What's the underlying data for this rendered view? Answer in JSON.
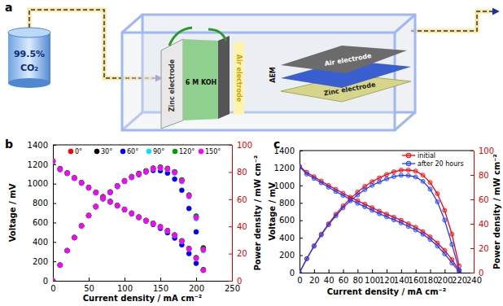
{
  "figure": {
    "panel_labels": [
      "a",
      "b",
      "c"
    ]
  },
  "diagram": {
    "gas_tank": [
      "99.5%",
      "CO₂"
    ],
    "cell": {
      "left": "Zinc electrode",
      "electrolyte": "6 M KOH",
      "right": "Air electrode"
    },
    "layers": [
      "Air electrode",
      "AEM",
      "Zinc electrode"
    ]
  },
  "chart_data": [
    {
      "type": "scatter",
      "marker": "circle",
      "legend": "top",
      "x_label": "Current density / mA cm⁻²",
      "y_label": "Voltage / mV",
      "y2_label": "Power density / mW cm⁻²",
      "xlim": [
        0,
        250
      ],
      "xticks": [
        0,
        50,
        100,
        150,
        200,
        250
      ],
      "ylim": [
        0,
        1400
      ],
      "yticks": [
        0,
        200,
        400,
        600,
        800,
        1000,
        1200,
        1400
      ],
      "y2lim": [
        0,
        100
      ],
      "y2ticks": [
        0,
        20,
        40,
        60,
        80,
        100
      ],
      "series": [
        {
          "name": "0°",
          "color": "#ff0000",
          "x": [
            0,
            10,
            20,
            30,
            40,
            50,
            60,
            70,
            80,
            90,
            100,
            110,
            120,
            130,
            140,
            150,
            160,
            170,
            180,
            190,
            200,
            210
          ],
          "values": [
            1230,
            1150,
            1110,
            1060,
            1010,
            960,
            910,
            865,
            815,
            775,
            735,
            695,
            655,
            620,
            590,
            555,
            515,
            470,
            410,
            330,
            235,
            110
          ]
        },
        {
          "name": "30°",
          "color": "#000000",
          "x": [
            0,
            10,
            20,
            30,
            40,
            50,
            60,
            70,
            80,
            90,
            100,
            110,
            120,
            130,
            140,
            150,
            160,
            170,
            180,
            190,
            200,
            210
          ],
          "values": [
            1235,
            1155,
            1112,
            1062,
            1012,
            962,
            912,
            866,
            818,
            777,
            737,
            697,
            658,
            622,
            592,
            557,
            517,
            472,
            412,
            332,
            238,
            115
          ]
        },
        {
          "name": "60°",
          "color": "#0000ff",
          "x": [
            0,
            10,
            20,
            30,
            40,
            50,
            60,
            70,
            80,
            90,
            100,
            110,
            120,
            130,
            140,
            150,
            160,
            170,
            180,
            190,
            200
          ],
          "values": [
            1225,
            1145,
            1105,
            1055,
            1005,
            955,
            905,
            860,
            810,
            770,
            730,
            690,
            650,
            615,
            580,
            540,
            495,
            440,
            370,
            280,
            180
          ]
        },
        {
          "name": "90°",
          "color": "#00e5ff",
          "x": [
            0,
            10,
            20,
            30,
            40,
            50,
            60,
            70,
            80,
            90,
            100,
            110,
            120,
            130,
            140,
            150,
            160,
            170,
            180,
            190,
            200,
            210
          ],
          "values": [
            1228,
            1148,
            1108,
            1058,
            1008,
            958,
            908,
            863,
            813,
            773,
            733,
            693,
            653,
            618,
            588,
            552,
            512,
            466,
            405,
            325,
            228,
            105
          ]
        },
        {
          "name": "120°",
          "color": "#00a000",
          "x": [
            0,
            10,
            20,
            30,
            40,
            50,
            60,
            70,
            80,
            90,
            100,
            110,
            120,
            130,
            140,
            150,
            160,
            170,
            180,
            190,
            200,
            210
          ],
          "values": [
            1232,
            1152,
            1110,
            1061,
            1011,
            961,
            911,
            866,
            816,
            776,
            736,
            696,
            656,
            621,
            591,
            556,
            516,
            471,
            411,
            331,
            236,
            112
          ]
        },
        {
          "name": "150°",
          "color": "#ff00ff",
          "x": [
            0,
            10,
            20,
            30,
            40,
            50,
            60,
            70,
            80,
            90,
            100,
            110,
            120,
            130,
            140,
            150,
            160,
            170,
            180,
            190,
            200,
            210
          ],
          "values": [
            1230,
            1150,
            1109,
            1059,
            1009,
            959,
            909,
            864,
            814,
            774,
            734,
            694,
            654,
            619,
            589,
            554,
            514,
            468,
            408,
            328,
            232,
            108
          ]
        },
        {
          "name": "0°",
          "color": "#ff0000",
          "axis": "y2",
          "x": [
            0,
            10,
            20,
            30,
            40,
            50,
            60,
            70,
            80,
            90,
            100,
            110,
            120,
            130,
            140,
            150,
            160,
            170,
            180,
            190,
            200,
            210
          ],
          "values": [
            0,
            11.5,
            22.2,
            31.8,
            40.4,
            48.0,
            54.6,
            60.6,
            65.2,
            69.8,
            73.5,
            76.5,
            78.6,
            80.6,
            82.6,
            83.3,
            82.4,
            79.9,
            73.8,
            62.7,
            47.0,
            23.1
          ]
        },
        {
          "name": "30°",
          "color": "#000000",
          "axis": "y2",
          "x": [
            0,
            10,
            20,
            30,
            40,
            50,
            60,
            70,
            80,
            90,
            100,
            110,
            120,
            130,
            140,
            150,
            160,
            170,
            180,
            190,
            200,
            210
          ],
          "values": [
            0,
            11.6,
            22.2,
            31.9,
            40.5,
            48.1,
            54.7,
            60.6,
            65.4,
            69.9,
            73.7,
            76.7,
            79.0,
            80.9,
            82.9,
            83.6,
            82.7,
            80.2,
            74.2,
            63.1,
            47.6,
            24.2
          ]
        },
        {
          "name": "60°",
          "color": "#0000ff",
          "axis": "y2",
          "x": [
            0,
            10,
            20,
            30,
            40,
            50,
            60,
            70,
            80,
            90,
            100,
            110,
            120,
            130,
            140,
            150,
            160,
            170,
            180,
            190,
            200
          ],
          "values": [
            0,
            11.5,
            22.1,
            31.7,
            40.2,
            47.8,
            54.3,
            60.2,
            64.8,
            69.3,
            73.0,
            75.9,
            78.0,
            80.0,
            81.2,
            81.0,
            79.2,
            74.8,
            66.6,
            53.2,
            36.0
          ]
        },
        {
          "name": "90°",
          "color": "#00e5ff",
          "axis": "y2",
          "x": [
            0,
            10,
            20,
            30,
            40,
            50,
            60,
            70,
            80,
            90,
            100,
            110,
            120,
            130,
            140,
            150,
            160,
            170,
            180,
            190,
            200,
            210
          ],
          "values": [
            0,
            11.5,
            22.2,
            31.7,
            40.3,
            47.9,
            54.5,
            60.4,
            65.0,
            69.6,
            73.3,
            76.2,
            78.4,
            80.3,
            82.3,
            82.8,
            81.9,
            79.2,
            72.9,
            61.8,
            45.6,
            22.1
          ]
        },
        {
          "name": "120°",
          "color": "#00a000",
          "axis": "y2",
          "x": [
            0,
            10,
            20,
            30,
            40,
            50,
            60,
            70,
            80,
            90,
            100,
            110,
            120,
            130,
            140,
            150,
            160,
            170,
            180,
            190,
            200,
            210
          ],
          "values": [
            0,
            11.5,
            22.2,
            31.8,
            40.4,
            48.1,
            54.7,
            60.6,
            65.3,
            69.8,
            73.6,
            76.6,
            78.7,
            80.7,
            82.7,
            83.4,
            82.6,
            80.1,
            74.0,
            62.9,
            47.2,
            23.5
          ]
        },
        {
          "name": "150°",
          "color": "#ff00ff",
          "axis": "y2",
          "x": [
            0,
            10,
            20,
            30,
            40,
            50,
            60,
            70,
            80,
            90,
            100,
            110,
            120,
            130,
            140,
            150,
            160,
            170,
            180,
            190,
            200,
            210
          ],
          "values": [
            0,
            11.5,
            22.2,
            31.8,
            40.4,
            48.0,
            54.5,
            60.5,
            65.1,
            69.7,
            73.4,
            76.3,
            78.5,
            80.5,
            82.5,
            83.1,
            82.2,
            79.6,
            73.4,
            62.3,
            46.4,
            22.7
          ]
        }
      ]
    },
    {
      "type": "line",
      "marker": "circle",
      "legend": "upper right",
      "x_label": "Current density / mA cm⁻²",
      "y_label": "Voltage / mV",
      "y2_label": "Power density / mW cm⁻²",
      "xlim": [
        0,
        240
      ],
      "xticks": [
        0,
        20,
        40,
        60,
        80,
        100,
        120,
        140,
        160,
        180,
        200,
        220,
        240
      ],
      "ylim": [
        0,
        1400
      ],
      "yticks": [
        0,
        200,
        400,
        600,
        800,
        1000,
        1200,
        1400
      ],
      "y2lim": [
        0,
        100
      ],
      "y2ticks": [
        0,
        20,
        40,
        60,
        80,
        100
      ],
      "series": [
        {
          "name": "initial",
          "color": "#ff0000",
          "x": [
            0,
            10,
            20,
            30,
            40,
            50,
            60,
            70,
            80,
            90,
            100,
            110,
            120,
            130,
            140,
            150,
            160,
            170,
            180,
            190,
            200,
            210,
            220
          ],
          "values": [
            1220,
            1150,
            1100,
            1050,
            1000,
            955,
            910,
            865,
            825,
            785,
            745,
            705,
            670,
            635,
            600,
            560,
            520,
            470,
            410,
            340,
            255,
            150,
            25
          ]
        },
        {
          "name": "after 20 hours",
          "color": "#1f3fff",
          "x": [
            0,
            10,
            20,
            30,
            40,
            50,
            60,
            70,
            80,
            90,
            100,
            110,
            120,
            130,
            140,
            150,
            160,
            170,
            180,
            190,
            200,
            210,
            220
          ],
          "values": [
            1215,
            1130,
            1080,
            1030,
            980,
            930,
            885,
            840,
            795,
            755,
            715,
            675,
            640,
            605,
            570,
            530,
            490,
            440,
            380,
            305,
            215,
            110,
            10
          ]
        },
        {
          "name": "initial",
          "color": "#ff0000",
          "axis": "y2",
          "x": [
            0,
            10,
            20,
            30,
            40,
            50,
            60,
            70,
            80,
            90,
            100,
            110,
            120,
            130,
            140,
            150,
            160,
            170,
            180,
            190,
            200,
            210,
            220
          ],
          "values": [
            0,
            11.5,
            22.0,
            31.5,
            40.0,
            47.8,
            54.6,
            60.6,
            66.0,
            70.7,
            74.5,
            77.6,
            80.4,
            82.6,
            84.0,
            84.0,
            83.2,
            79.9,
            73.8,
            64.6,
            51.0,
            31.5,
            5.5
          ]
        },
        {
          "name": "after 20 hours",
          "color": "#1f3fff",
          "axis": "y2",
          "x": [
            0,
            10,
            20,
            30,
            40,
            50,
            60,
            70,
            80,
            90,
            100,
            110,
            120,
            130,
            140,
            150,
            160,
            170,
            180,
            190,
            200,
            210,
            220
          ],
          "values": [
            0,
            11.3,
            21.6,
            30.9,
            39.2,
            46.5,
            53.1,
            58.8,
            63.6,
            68.0,
            71.5,
            74.3,
            76.8,
            78.7,
            79.8,
            79.5,
            78.4,
            74.8,
            68.4,
            58.0,
            43.0,
            23.1,
            2.2
          ]
        }
      ]
    }
  ]
}
